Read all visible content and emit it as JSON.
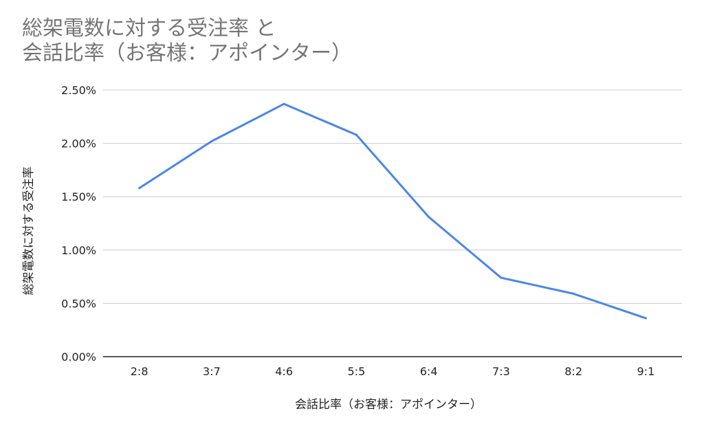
{
  "chart_data": {
    "type": "line",
    "title_lines": [
      "総架電数に対する受注率 と",
      "会話比率（お客様：アポインター）"
    ],
    "xlabel": "会話比率（お客様：アポインター）",
    "ylabel": "総架電数に対する受注率",
    "categories": [
      "2:8",
      "3:7",
      "4:6",
      "5:5",
      "6:4",
      "7:3",
      "8:2",
      "9:1"
    ],
    "series": [
      {
        "values": [
          1.58,
          2.02,
          2.37,
          2.08,
          1.31,
          0.74,
          0.59,
          0.36
        ],
        "color": "#4a86e8"
      }
    ],
    "ylim": [
      0,
      2.5
    ],
    "yticks": [
      0,
      0.5,
      1.0,
      1.5,
      2.0,
      2.5
    ],
    "ytick_labels": [
      "0.00%",
      "0.50%",
      "1.00%",
      "1.50%",
      "2.00%",
      "2.50%"
    ],
    "grid": true,
    "legend": "none"
  }
}
